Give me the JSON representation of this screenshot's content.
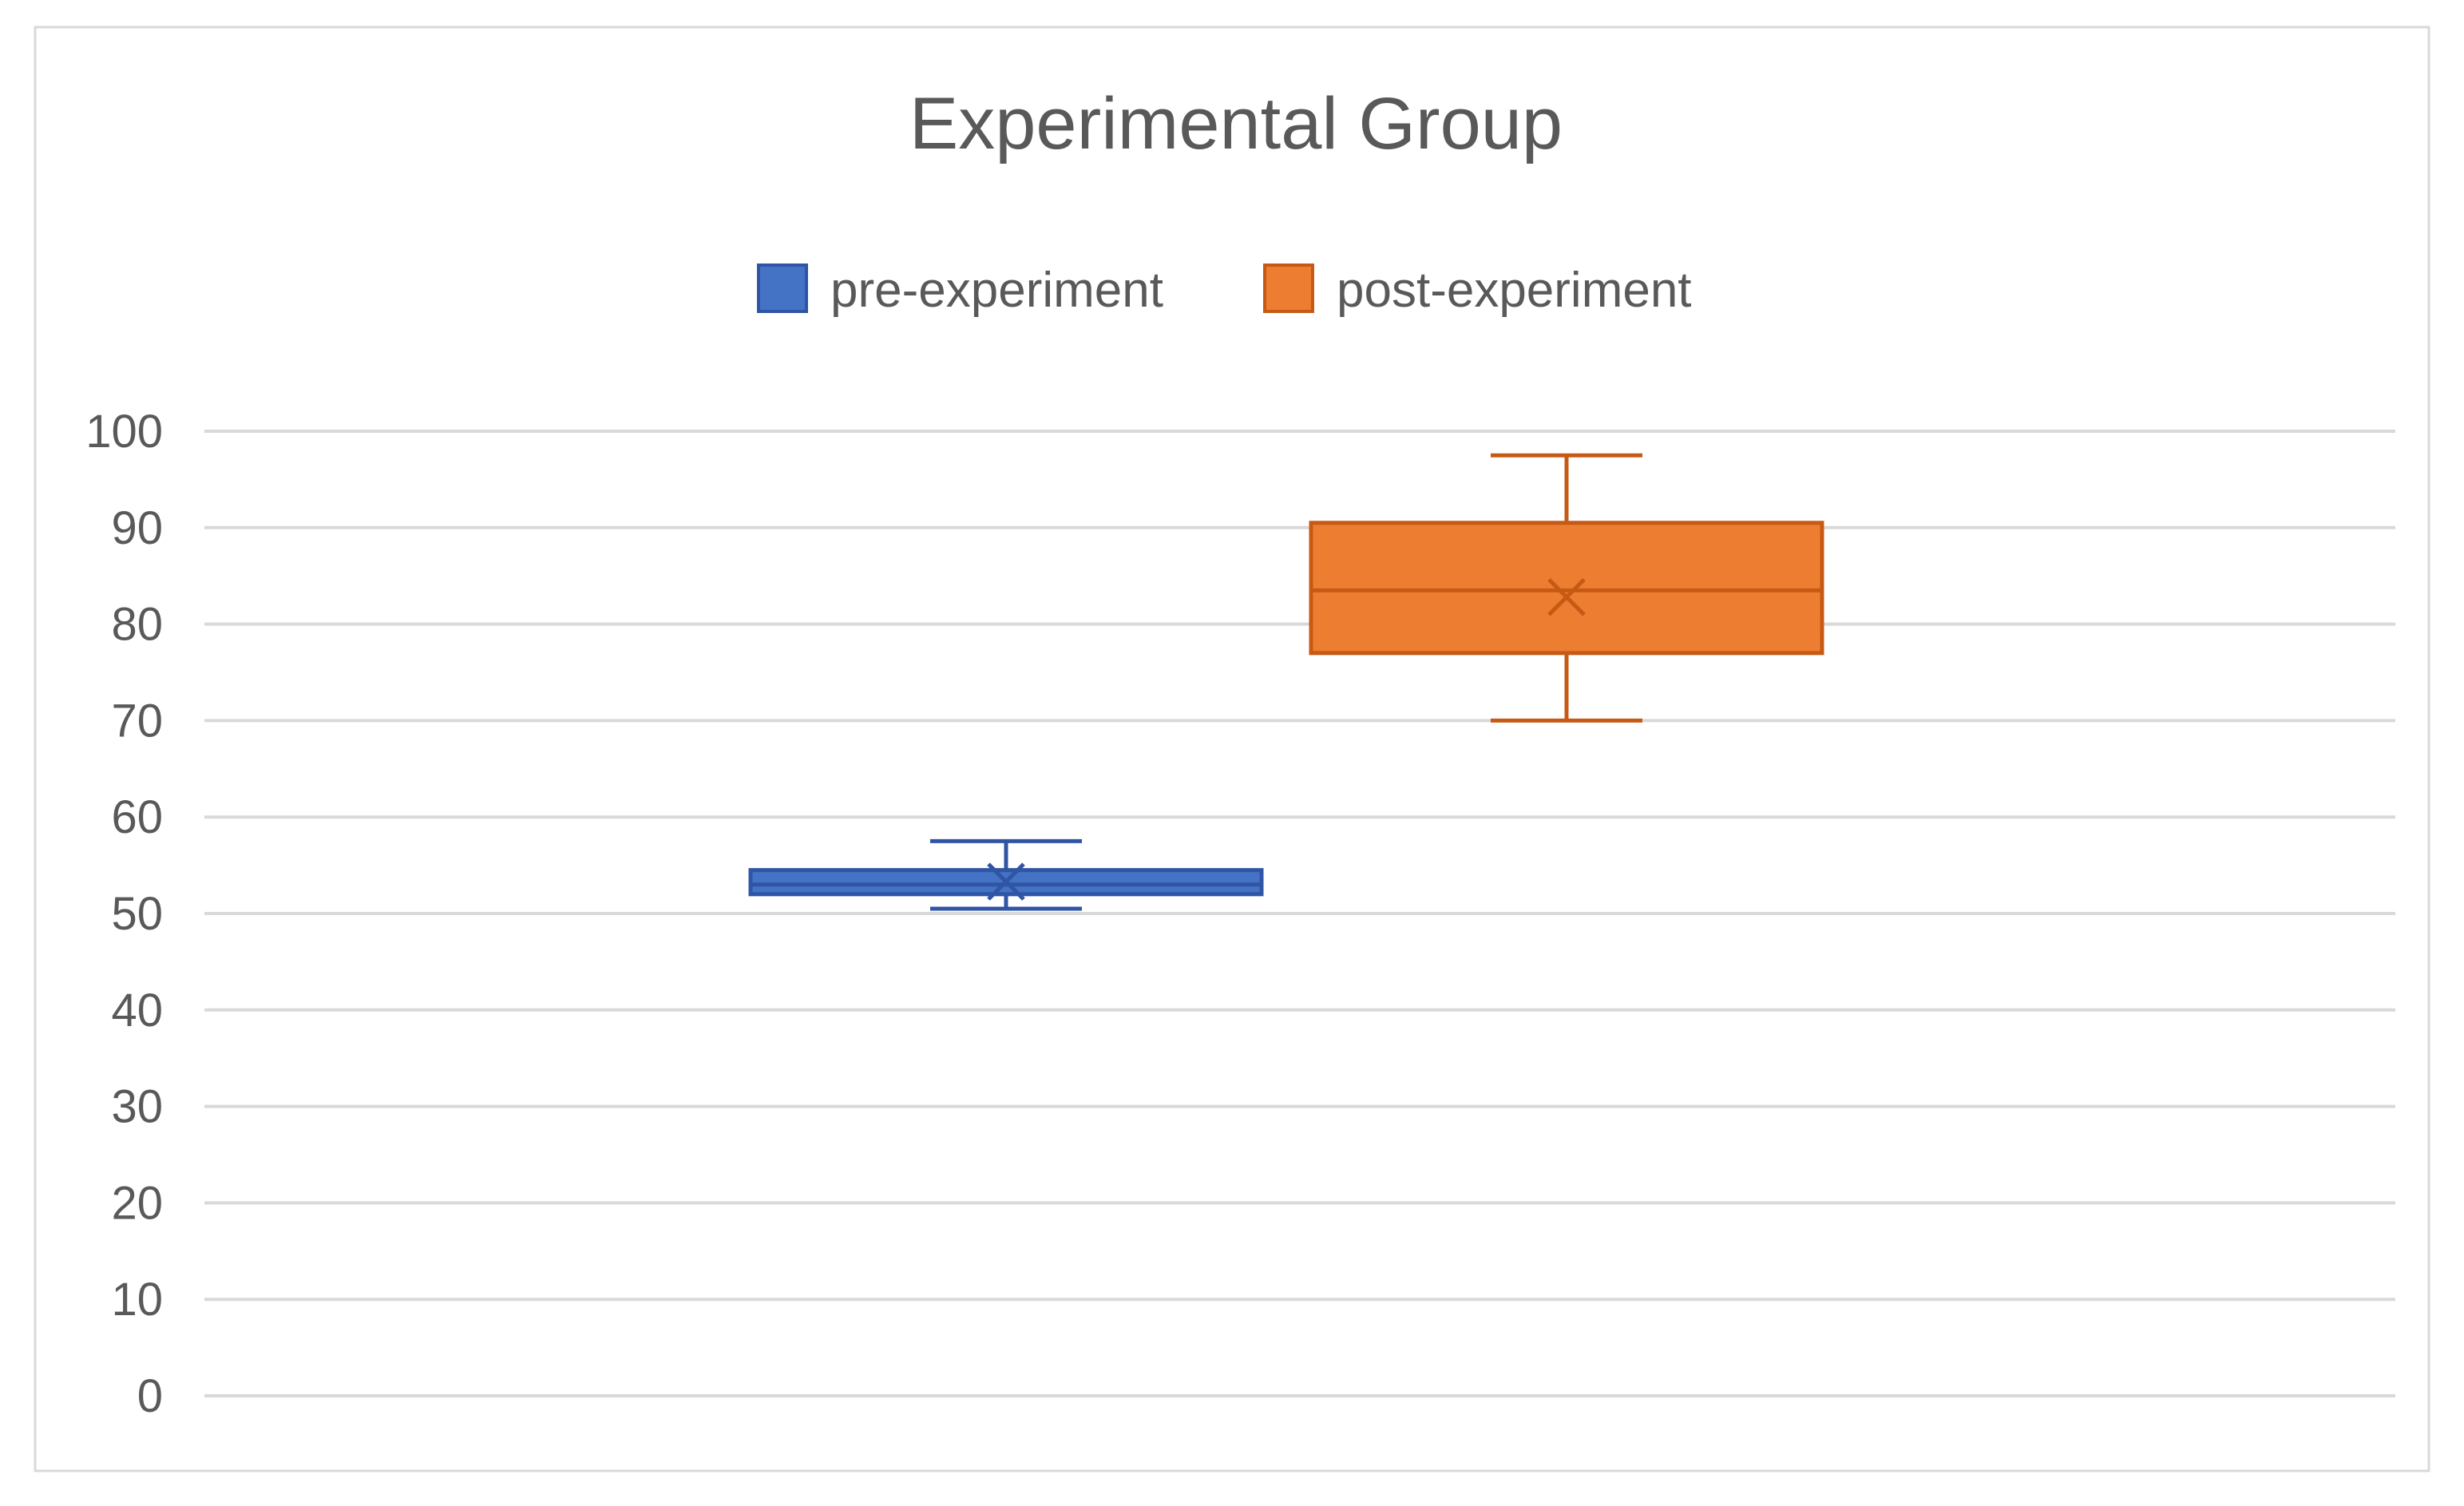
{
  "chart_data": {
    "type": "box",
    "title": "Experimental Group",
    "xlabel": "",
    "ylabel": "",
    "ylim": [
      0,
      100
    ],
    "y_ticks": [
      0,
      10,
      20,
      30,
      40,
      50,
      60,
      70,
      80,
      90,
      100
    ],
    "y_tick_labels": [
      "0",
      "10",
      "20",
      "30",
      "40",
      "50",
      "60",
      "70",
      "80",
      "90",
      "100"
    ],
    "grid": true,
    "legend_position": "top-center",
    "series": [
      {
        "name": "pre-experiment",
        "color": "#4472C4",
        "edge_color": "#2F55A4",
        "min": 50.5,
        "q1": 52,
        "median": 53,
        "q3": 54.5,
        "max": 57.5,
        "mean": 53.3
      },
      {
        "name": "post-experiment",
        "color": "#ED7D31",
        "edge_color": "#C65A14",
        "min": 70,
        "q1": 77,
        "median": 83.5,
        "q3": 90.5,
        "max": 97.5,
        "mean": 82.8
      }
    ]
  }
}
